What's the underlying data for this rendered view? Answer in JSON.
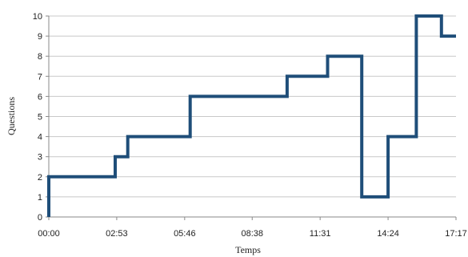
{
  "chart_data": {
    "type": "line",
    "step": true,
    "xlabel": "Temps",
    "ylabel": "Questions",
    "grid": true,
    "ylim": [
      0,
      10
    ],
    "y_ticks": [
      0,
      1,
      2,
      3,
      4,
      5,
      6,
      7,
      8,
      9,
      10
    ],
    "x_tick_labels": [
      "00:00",
      "02:53",
      "05:46",
      "08:38",
      "11:31",
      "14:24",
      "17:17"
    ],
    "x_tick_seconds": [
      0,
      173,
      346,
      518,
      691,
      864,
      1037
    ],
    "xlim_seconds": [
      0,
      1037
    ],
    "series": [
      {
        "color": "#1f4e79",
        "points": [
          {
            "t": "00:00",
            "y": 0
          },
          {
            "t": "00:00",
            "y": 2
          },
          {
            "t": "02:49",
            "y": 2
          },
          {
            "t": "02:49",
            "y": 3
          },
          {
            "t": "03:21",
            "y": 3
          },
          {
            "t": "03:21",
            "y": 4
          },
          {
            "t": "06:00",
            "y": 4
          },
          {
            "t": "06:00",
            "y": 6
          },
          {
            "t": "10:07",
            "y": 6
          },
          {
            "t": "10:07",
            "y": 7
          },
          {
            "t": "11:50",
            "y": 7
          },
          {
            "t": "11:50",
            "y": 8
          },
          {
            "t": "13:17",
            "y": 8
          },
          {
            "t": "13:17",
            "y": 1
          },
          {
            "t": "14:24",
            "y": 1
          },
          {
            "t": "14:24",
            "y": 4
          },
          {
            "t": "15:36",
            "y": 4
          },
          {
            "t": "15:36",
            "y": 10
          },
          {
            "t": "16:40",
            "y": 10
          },
          {
            "t": "16:40",
            "y": 9
          },
          {
            "t": "17:17",
            "y": 9
          }
        ]
      }
    ]
  }
}
